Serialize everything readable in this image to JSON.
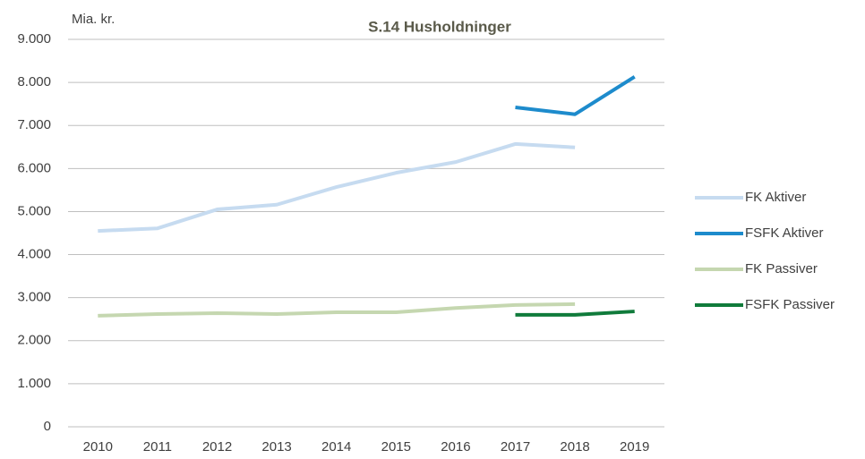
{
  "chart_data": {
    "type": "line",
    "title": "S.14 Husholdninger",
    "ylabel": "Mia. kr.",
    "categories": [
      "2010",
      "2011",
      "2012",
      "2013",
      "2014",
      "2015",
      "2016",
      "2017",
      "2018",
      "2019"
    ],
    "series": [
      {
        "name": "FK Aktiver",
        "color": "#c6dbf0",
        "values": [
          4550,
          4610,
          5050,
          5160,
          5570,
          5900,
          6150,
          6570,
          6490,
          null
        ]
      },
      {
        "name": "FSFK Aktiver",
        "color": "#1d8bcc",
        "values": [
          null,
          null,
          null,
          null,
          null,
          null,
          null,
          7420,
          7260,
          8130
        ]
      },
      {
        "name": "FK Passiver",
        "color": "#c5d7b0",
        "values": [
          2580,
          2620,
          2640,
          2620,
          2660,
          2660,
          2760,
          2830,
          2850,
          null
        ]
      },
      {
        "name": "FSFK Passiver",
        "color": "#107b3b",
        "values": [
          null,
          null,
          null,
          null,
          null,
          null,
          null,
          2600,
          2600,
          2680
        ]
      }
    ],
    "ylim": [
      0,
      9000
    ],
    "yticks": [
      0,
      {
        "value": 1000,
        "label": "1.000"
      },
      {
        "value": 2000,
        "label": "2.000"
      },
      {
        "value": 3000,
        "label": "3.000"
      },
      {
        "value": 4000,
        "label": "4.000"
      },
      {
        "value": 5000,
        "label": "5.000"
      },
      {
        "value": 6000,
        "label": "6.000"
      },
      {
        "value": 7000,
        "label": "7.000"
      },
      {
        "value": 8000,
        "label": "8.000"
      },
      {
        "value": 9000,
        "label": "9.000"
      }
    ],
    "grid": true,
    "legend": "right"
  }
}
